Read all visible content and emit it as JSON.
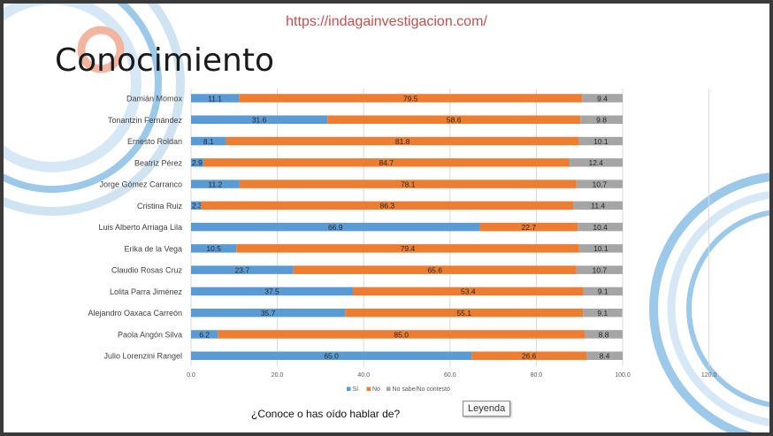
{
  "header": {
    "url": "https://indagainvestigacion.com/",
    "title": "Conocimiento"
  },
  "footer": {
    "question": "¿Conoce o has oído hablar de?",
    "legend_button": "Leyenda"
  },
  "colors": {
    "si": "#5b9bd5",
    "no": "#ed7d31",
    "ns": "#a5a5a5",
    "decor_blue": "#9cc9ea",
    "decor_light": "#cfe3f1",
    "decor_salmon": "#f2b6a0",
    "url": "#c0504d"
  },
  "chart_data": {
    "type": "bar",
    "orientation": "horizontal",
    "stacked": true,
    "categories": [
      "Damián Momox",
      "Tonantzin Fernández",
      "Ernesto Roldan",
      "Beatriz Pérez",
      "Jorge Gómez Carranco",
      "Cristina Ruiz",
      "Luis Alberto Arriaga Lila",
      "Erika de la Vega",
      "Claudio Rosas Cruz",
      "Lolita Parra Jiménez",
      "Alejandro Oaxaca Carreón",
      "Paola Angón Silva",
      "Julio Lorenzini Rangel"
    ],
    "series": [
      {
        "name": "Sí",
        "color": "#5b9bd5",
        "values": [
          11.1,
          31.6,
          8.1,
          2.9,
          11.2,
          2.3,
          66.9,
          10.5,
          23.7,
          37.5,
          35.7,
          6.2,
          65.0
        ]
      },
      {
        "name": "No",
        "color": "#ed7d31",
        "values": [
          79.5,
          58.6,
          81.8,
          84.7,
          78.1,
          86.3,
          22.7,
          79.4,
          65.6,
          53.4,
          55.1,
          85.0,
          26.6
        ]
      },
      {
        "name": "No sabe/No contestó",
        "color": "#a5a5a5",
        "values": [
          9.4,
          9.8,
          10.1,
          12.4,
          10.7,
          11.4,
          10.4,
          10.1,
          10.7,
          9.1,
          9.1,
          8.8,
          8.4
        ]
      }
    ],
    "xlim": [
      0,
      120
    ],
    "x_ticks": [
      "0.0",
      "20.0",
      "40.0",
      "60.0",
      "80.0",
      "100.0",
      "120.0"
    ],
    "grid": "vertical",
    "legend_position": "bottom"
  }
}
